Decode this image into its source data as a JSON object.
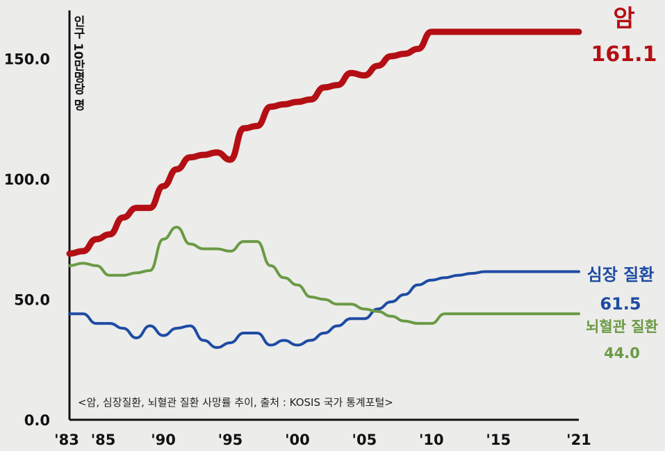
{
  "chart_data": {
    "type": "line",
    "ylabel": "인구 10만명당 명",
    "ylim": [
      0,
      170
    ],
    "yticks": [
      {
        "value": 0,
        "label": "0.0"
      },
      {
        "value": 50,
        "label": "50.0"
      },
      {
        "value": 100,
        "label": "100.0"
      },
      {
        "value": 150,
        "label": "150.0"
      }
    ],
    "xlim": [
      1983,
      2021
    ],
    "xticks": [
      {
        "value": 1983,
        "label": "'83"
      },
      {
        "value": 1985,
        "label": "'85"
      },
      {
        "value": 1990,
        "label": "'90"
      },
      {
        "value": 1995,
        "label": "'95"
      },
      {
        "value": 2000,
        "label": "'00"
      },
      {
        "value": 2005,
        "label": "'05"
      },
      {
        "value": 2010,
        "label": "'10"
      },
      {
        "value": 2015,
        "label": "'15"
      },
      {
        "value": 2021,
        "label": "'21"
      }
    ],
    "x": [
      1983,
      1984,
      1985,
      1986,
      1987,
      1988,
      1989,
      1990,
      1991,
      1992,
      1993,
      1994,
      1995,
      1996,
      1997,
      1998,
      1999,
      2000,
      2001,
      2002,
      2003,
      2004,
      2005,
      2006,
      2007,
      2008,
      2009,
      2010,
      2011,
      2012,
      2013,
      2014,
      2015,
      2016,
      2017,
      2018,
      2019,
      2020,
      2021
    ],
    "series": [
      {
        "name": "암",
        "end_label": "161.1",
        "color": "#b30f14",
        "values": [
          69,
          70,
          75,
          77,
          84,
          88,
          88,
          97,
          104,
          109,
          110,
          111,
          108,
          121,
          122,
          130,
          131,
          132,
          133,
          138,
          139,
          144,
          143,
          147,
          151,
          152,
          154,
          161.1,
          161.1,
          161.1,
          161.1,
          161.1,
          161.1,
          161.1,
          161.1,
          161.1,
          161.1,
          161.1,
          161.1
        ]
      },
      {
        "name": "심장 질환",
        "end_label": "61.5",
        "color": "#1e4ba3",
        "values": [
          44,
          44,
          40,
          40,
          38,
          34,
          39,
          35,
          38,
          39,
          33,
          30,
          32,
          36,
          36,
          31,
          33,
          31,
          33,
          36,
          39,
          42,
          42,
          46,
          49,
          52,
          56,
          58,
          59,
          60,
          60.8,
          61.5,
          61.5,
          61.5,
          61.5,
          61.5,
          61.5,
          61.5,
          61.5
        ]
      },
      {
        "name": "뇌혈관 질환",
        "end_label": "44.0",
        "color": "#6a9a45",
        "values": [
          64,
          65,
          64,
          60,
          60,
          61,
          62,
          75,
          80,
          73,
          71,
          71,
          70,
          74,
          74,
          64,
          59,
          56,
          51,
          50,
          48,
          48,
          46,
          45,
          43,
          41,
          40,
          40,
          44,
          44,
          44,
          44,
          44,
          44,
          44,
          44,
          44,
          44,
          44
        ]
      }
    ],
    "source": "<암, 심장질환, 뇌혈관 질환 사망률 추이, 출처 : KOSIS 국가 통계포털>"
  }
}
